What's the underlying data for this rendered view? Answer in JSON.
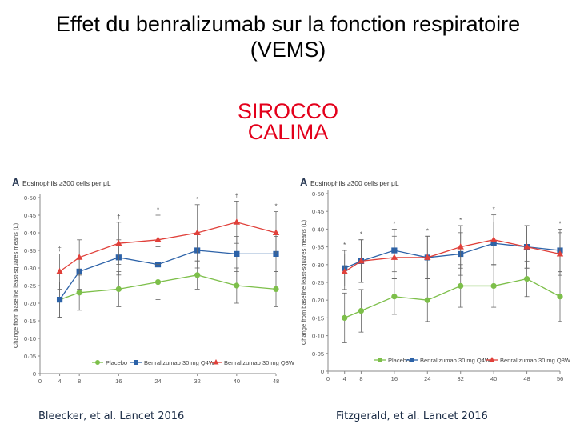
{
  "slide": {
    "title_line1": "Effet du benralizumab sur la fonction respiratoire",
    "title_line2": "(VEMS)",
    "study1": "SIROCCO",
    "study2": "CALIMA"
  },
  "colors": {
    "placebo": "#7dbf4a",
    "q4w": "#2c62a8",
    "q8w": "#e0403a",
    "accent": "#e3001b"
  },
  "chart_data": [
    {
      "type": "line",
      "panel_label": "A",
      "title": "Eosinophils ≥300 cells per μL",
      "ylabel": "Change from baseline least-squares means (L)",
      "xlabel": "",
      "x": [
        4,
        8,
        16,
        24,
        32,
        40,
        48
      ],
      "x_ticks": [
        0,
        4,
        8,
        16,
        24,
        32,
        40,
        48
      ],
      "x_range": [
        0,
        48
      ],
      "y_ticks": [
        "0",
        "0·05",
        "0·10",
        "0·15",
        "0·20",
        "0·25",
        "0·30",
        "0·35",
        "0·40",
        "0·45",
        "0·50"
      ],
      "ylim": [
        0,
        0.5
      ],
      "series": [
        {
          "name": "Placebo",
          "color": "#7dbf4a",
          "marker": "circle",
          "values": [
            0.21,
            0.23,
            0.24,
            0.26,
            0.28,
            0.25,
            0.24
          ],
          "errors": [
            0.05,
            0.05,
            0.05,
            0.05,
            0.04,
            0.05,
            0.05
          ]
        },
        {
          "name": "Benralizumab 30 mg Q4W",
          "color": "#2c62a8",
          "marker": "square",
          "values": [
            0.21,
            0.29,
            0.33,
            0.31,
            0.35,
            0.34,
            0.34
          ],
          "errors": [
            0.05,
            0.05,
            0.05,
            0.05,
            0.05,
            0.05,
            0.05
          ]
        },
        {
          "name": "Benralizumab 30 mg Q8W",
          "color": "#e0403a",
          "marker": "triangle",
          "values": [
            0.29,
            0.33,
            0.37,
            0.38,
            0.4,
            0.43,
            0.4
          ],
          "errors": [
            0.05,
            0.05,
            0.06,
            0.07,
            0.08,
            0.06,
            0.06
          ]
        }
      ],
      "annotations": [
        {
          "x": 4,
          "text": "‡"
        },
        {
          "x": 16,
          "text": "†"
        },
        {
          "x": 24,
          "text": "*"
        },
        {
          "x": 32,
          "text": "*"
        },
        {
          "x": 40,
          "text": "†"
        },
        {
          "x": 48,
          "text": "*"
        }
      ],
      "citation": "Bleecker, et al. Lancet 2016"
    },
    {
      "type": "line",
      "panel_label": "A",
      "title": "Eosinophils ≥300 cells per μL",
      "ylabel": "Change from baseline least-squares means (L)",
      "xlabel": "",
      "x": [
        4,
        8,
        16,
        24,
        32,
        40,
        48,
        56
      ],
      "x_ticks": [
        0,
        4,
        8,
        16,
        24,
        32,
        40,
        48,
        56
      ],
      "x_range": [
        0,
        56
      ],
      "y_ticks": [
        "0",
        "0·05",
        "0·10",
        "0·15",
        "0·20",
        "0·25",
        "0·30",
        "0·35",
        "0·40",
        "0·45",
        "0·50"
      ],
      "ylim": [
        0,
        0.5
      ],
      "series": [
        {
          "name": "Placebo",
          "color": "#7dbf4a",
          "marker": "circle",
          "values": [
            0.15,
            0.17,
            0.21,
            0.2,
            0.24,
            0.24,
            0.26,
            0.21
          ],
          "errors": [
            0.07,
            0.06,
            0.05,
            0.06,
            0.06,
            0.06,
            0.05,
            0.07
          ]
        },
        {
          "name": "Benralizumab 30 mg Q4W",
          "color": "#2c62a8",
          "marker": "square",
          "values": [
            0.29,
            0.31,
            0.34,
            0.32,
            0.33,
            0.36,
            0.35,
            0.34
          ],
          "errors": [
            0.05,
            0.06,
            0.06,
            0.06,
            0.06,
            0.06,
            0.06,
            0.06
          ]
        },
        {
          "name": "Benralizumab 30 mg Q8W",
          "color": "#e0403a",
          "marker": "triangle",
          "values": [
            0.28,
            0.31,
            0.32,
            0.32,
            0.35,
            0.37,
            0.35,
            0.33
          ],
          "errors": [
            0.05,
            0.06,
            0.06,
            0.06,
            0.06,
            0.07,
            0.06,
            0.06
          ]
        }
      ],
      "annotations": [
        {
          "x": 4,
          "text": "*"
        },
        {
          "x": 8,
          "text": "*"
        },
        {
          "x": 16,
          "text": "*"
        },
        {
          "x": 24,
          "text": "*"
        },
        {
          "x": 32,
          "text": "*"
        },
        {
          "x": 40,
          "text": "*"
        },
        {
          "x": 56,
          "text": "*"
        }
      ],
      "citation": "Fitzgerald, et al. Lancet 2016"
    }
  ]
}
